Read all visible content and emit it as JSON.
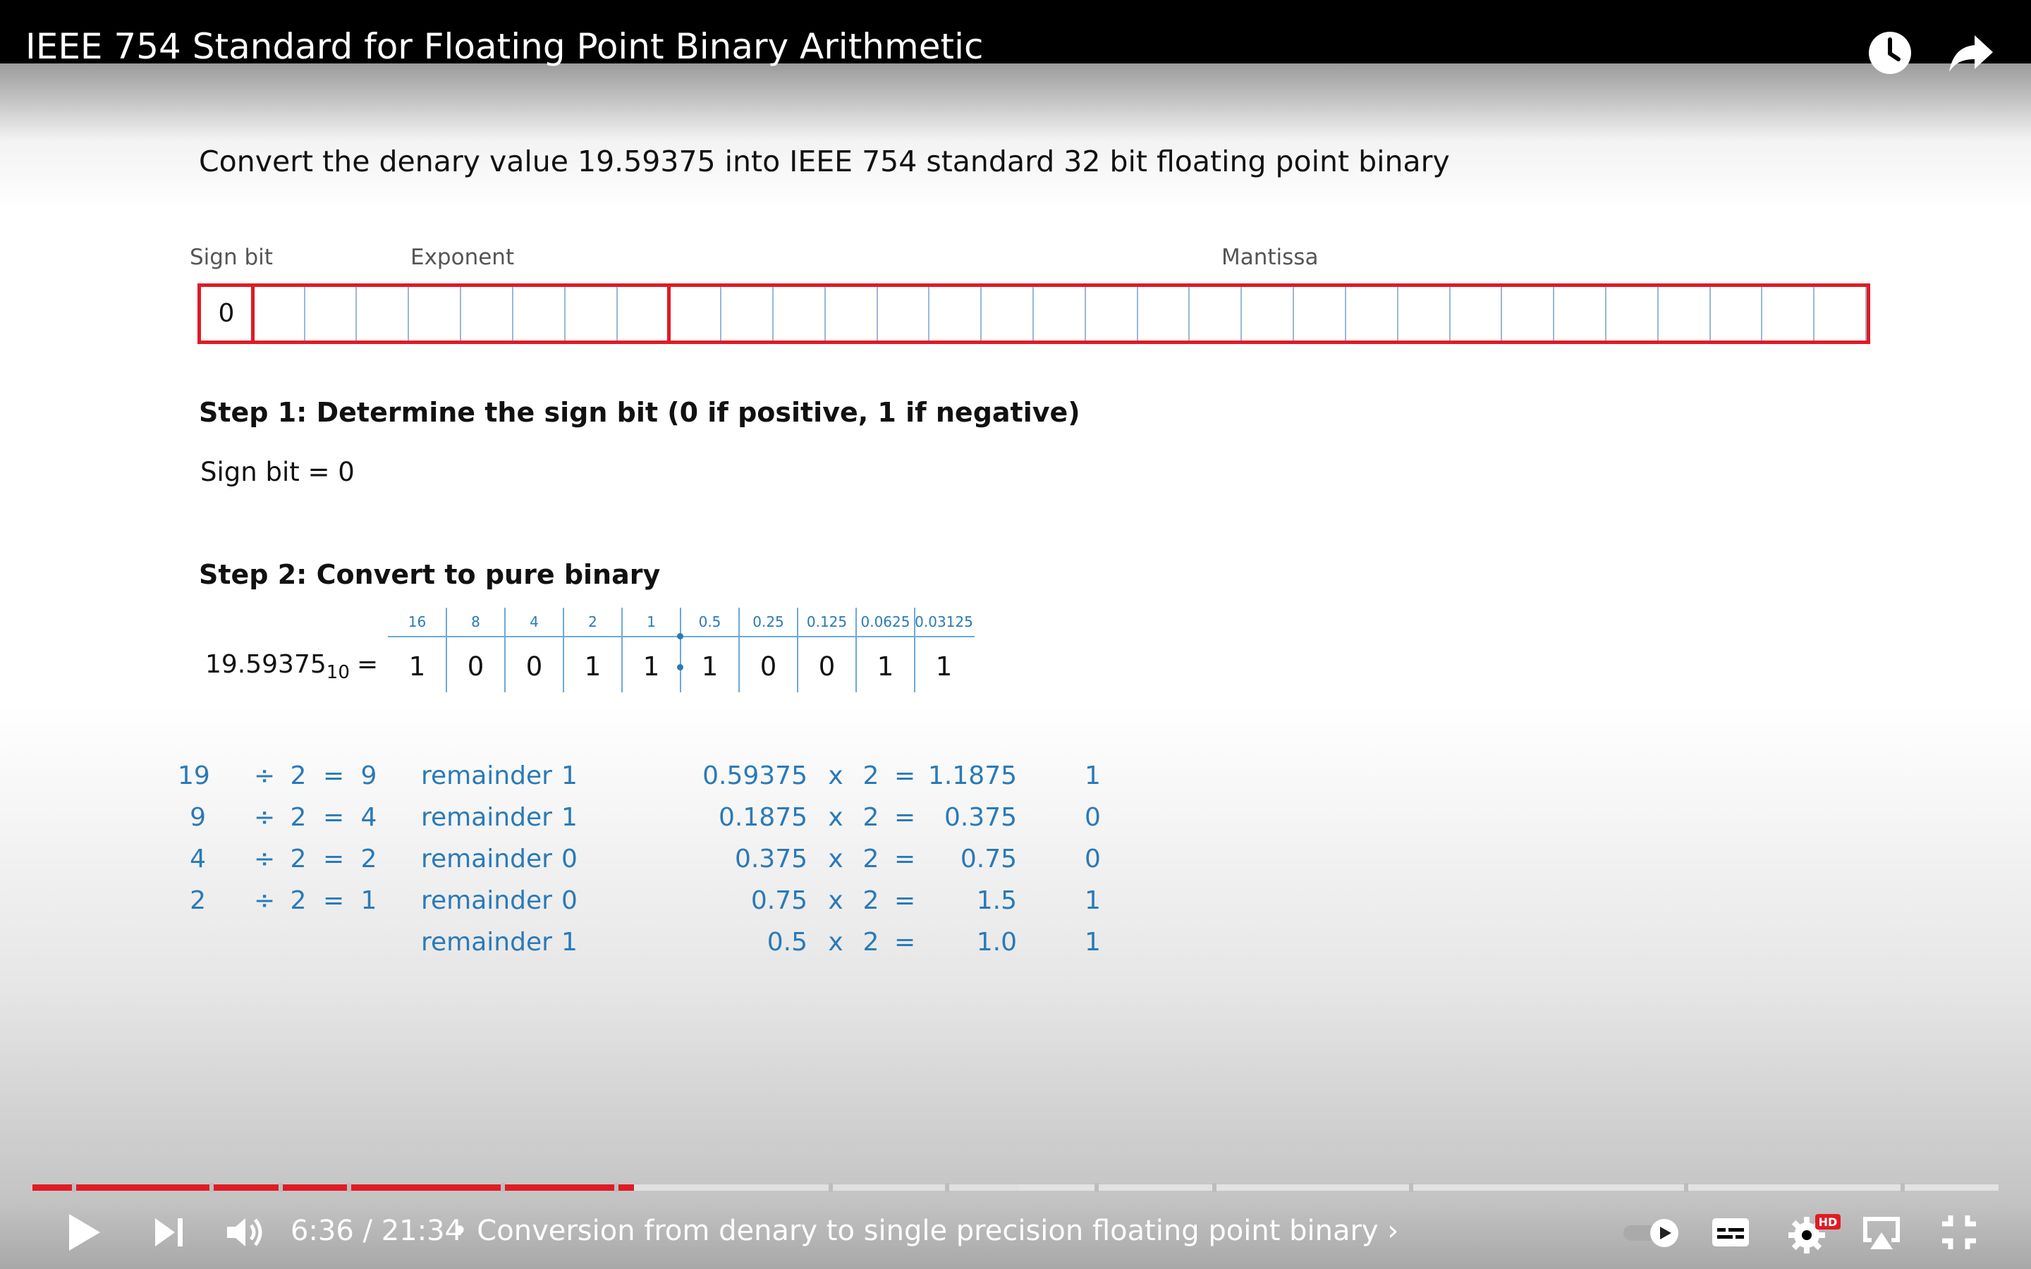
{
  "video": {
    "title": "IEEE 754 Standard for Floating Point Binary Arithmetic",
    "icons": {
      "watch_later": "clock-icon",
      "share": "share-icon"
    }
  },
  "slide": {
    "question": "Convert the denary value 19.59375  into IEEE 754  standard 32 bit floating point binary",
    "labels": {
      "sign": "Sign bit",
      "exponent": "Exponent",
      "mantissa": "Mantissa"
    },
    "register": {
      "sign_bit_value": "0",
      "border_color": "#e01b24"
    },
    "step1": {
      "heading": "Step 1: Determine the sign bit (0 if positive, 1 if negative)",
      "result": "Sign bit  =  0"
    },
    "step2": {
      "heading": "Step 2: Convert to pure binary",
      "denary": "19.59375",
      "base": "10",
      "equals": "=",
      "place_values": [
        "16",
        "8",
        "4",
        "2",
        "1",
        "0.5",
        "0.25",
        "0.125",
        "0.0625",
        "0.03125"
      ],
      "bits": [
        "1",
        "0",
        "0",
        "1",
        "1",
        "1",
        "0",
        "0",
        "1",
        "1"
      ]
    },
    "division": [
      {
        "n": "19",
        "op": "÷",
        "d": "2",
        "eq": "=",
        "q": "9",
        "label": "remainder",
        "r": "1"
      },
      {
        "n": "9",
        "op": "÷",
        "d": "2",
        "eq": "=",
        "q": "4",
        "label": "remainder",
        "r": "1"
      },
      {
        "n": "4",
        "op": "÷",
        "d": "2",
        "eq": "=",
        "q": "2",
        "label": "remainder",
        "r": "0"
      },
      {
        "n": "2",
        "op": "÷",
        "d": "2",
        "eq": "=",
        "q": "1",
        "label": "remainder",
        "r": "0"
      },
      {
        "n": "",
        "op": "",
        "d": "",
        "eq": "",
        "q": "",
        "label": "remainder",
        "r": "1"
      }
    ],
    "multiplication": [
      {
        "f": "0.59375",
        "op": "x",
        "m": "2",
        "eq": "=",
        "p": "1.1875",
        "bit": "1"
      },
      {
        "f": "0.1875",
        "op": "x",
        "m": "2",
        "eq": "=",
        "p": "0.375",
        "bit": "0"
      },
      {
        "f": "0.375",
        "op": "x",
        "m": "2",
        "eq": "=",
        "p": "0.75",
        "bit": "0"
      },
      {
        "f": "0.75",
        "op": "x",
        "m": "2",
        "eq": "=",
        "p": "1.5",
        "bit": "1"
      },
      {
        "f": "0.5",
        "op": "x",
        "m": "2",
        "eq": "=",
        "p": "1.0",
        "bit": "1"
      }
    ],
    "calc_color": "#2a7ab8"
  },
  "player": {
    "time": "6:36 / 21:34",
    "chapter": "• Conversion from denary to single precision floating point binary ›",
    "progress_fraction": 0.306,
    "progress_color": "#e01b24",
    "buffer_color": "#e0e0e0",
    "controls": [
      "play-icon",
      "next-icon",
      "volume-icon",
      "autoplay-toggle",
      "subtitles-icon",
      "settings-icon",
      "airplay-icon",
      "exit-fullscreen-icon"
    ],
    "hd_badge": "HD"
  }
}
